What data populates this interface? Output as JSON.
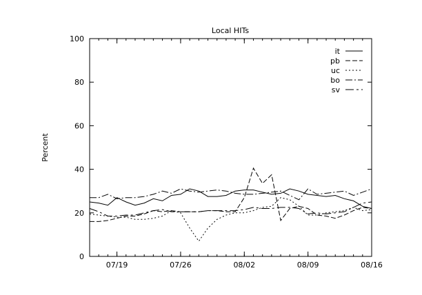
{
  "chart_data": {
    "type": "line",
    "title": "Local HITs",
    "xlabel": "",
    "ylabel": "Percent",
    "ylim": [
      0,
      100
    ],
    "yticks": [
      0,
      20,
      40,
      60,
      80,
      100
    ],
    "x_dates": [
      "07/16",
      "07/17",
      "07/18",
      "07/19",
      "07/20",
      "07/21",
      "07/22",
      "07/23",
      "07/24",
      "07/25",
      "07/26",
      "07/27",
      "07/28",
      "07/29",
      "07/30",
      "07/31",
      "08/01",
      "08/02",
      "08/03",
      "08/04",
      "08/05",
      "08/06",
      "08/07",
      "08/08",
      "08/09",
      "08/10",
      "08/11",
      "08/12",
      "08/13",
      "08/14",
      "08/15",
      "08/16"
    ],
    "xticks": [
      "07/19",
      "07/26",
      "08/02",
      "08/09",
      "08/16"
    ],
    "grid": false,
    "legend_position": "top-right",
    "series": [
      {
        "name": "it",
        "dash": "",
        "values": [
          25,
          24.5,
          23.5,
          27,
          25,
          23.5,
          24.5,
          26.5,
          25.5,
          28,
          28.5,
          31,
          30,
          27.5,
          27.5,
          28,
          30,
          30.5,
          30.5,
          29.5,
          28.5,
          29,
          31,
          30,
          28.5,
          28,
          27.5,
          28,
          26.5,
          25.5,
          23,
          22
        ]
      },
      {
        "name": "pb",
        "dash": "7,3",
        "values": [
          16,
          16,
          16.5,
          17.5,
          18.5,
          18.5,
          19.5,
          21,
          20.5,
          21,
          20.5,
          20.5,
          20.5,
          21,
          21,
          20.5,
          20.5,
          27,
          40.5,
          33.5,
          37.5,
          16.5,
          22,
          23,
          22,
          19,
          18.5,
          17.5,
          19,
          21,
          22.5,
          22
        ]
      },
      {
        "name": "uc",
        "dash": "2,3",
        "values": [
          19.5,
          19,
          18.5,
          18,
          18,
          17,
          17,
          17.5,
          18.5,
          21,
          20,
          13,
          7,
          13,
          17,
          19,
          20,
          20,
          21,
          22.5,
          23,
          27,
          26,
          23,
          19,
          19,
          20,
          20.5,
          21,
          22.5,
          21,
          21.5
        ]
      },
      {
        "name": "bo",
        "dash": "10,3,2,3",
        "values": [
          27,
          27,
          28.5,
          26.5,
          27,
          27,
          27.5,
          28.5,
          30,
          29,
          31,
          30,
          29.5,
          30,
          30.5,
          30,
          29,
          28.5,
          28.5,
          29,
          29.5,
          30,
          28,
          26,
          31,
          28.5,
          29,
          29.5,
          30,
          28,
          29.5,
          31
        ]
      },
      {
        "name": "sv",
        "dash": "12,4,3,4",
        "values": [
          22,
          20.5,
          18.5,
          18.5,
          19,
          19,
          20,
          21,
          21.5,
          20.5,
          20.5,
          20.5,
          20.5,
          21,
          21,
          21,
          21,
          21.5,
          22.5,
          22,
          22,
          22.5,
          22.5,
          22,
          19.5,
          20,
          19.5,
          20,
          20.5,
          22.5,
          24.5,
          25
        ]
      }
    ]
  }
}
